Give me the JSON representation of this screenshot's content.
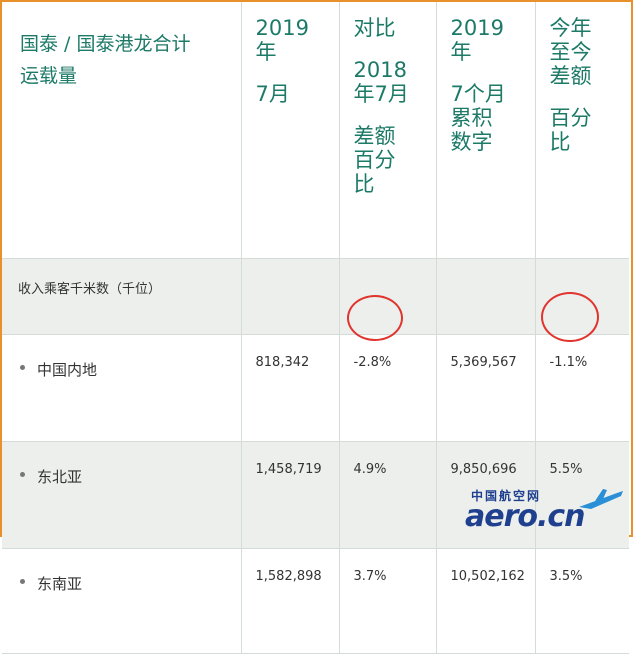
{
  "table": {
    "headers": [
      [
        "国泰 / 国泰港龙合计",
        "运载量"
      ],
      [
        "2019",
        "年",
        "7月"
      ],
      [
        "对比",
        "2018",
        "年7月",
        "差额",
        "百分",
        "比"
      ],
      [
        "2019",
        "年",
        "7个月",
        "累积",
        "数字"
      ],
      [
        "今年",
        "至今",
        "差额",
        "百分",
        "比"
      ]
    ],
    "section_label": "收入乘客千米数（千位）",
    "rows": [
      {
        "name": "中国内地",
        "month": "818,342",
        "mom": "-2.8%",
        "ytd": "5,369,567",
        "ytd_pct": "-1.1%"
      },
      {
        "name": "东北亚",
        "month": "1,458,719",
        "mom": "4.9%",
        "ytd": "9,850,696",
        "ytd_pct": "5.5%"
      },
      {
        "name": "东南亚",
        "month": "1,582,898",
        "mom": "3.7%",
        "ytd": "10,502,162",
        "ytd_pct": "3.5%"
      }
    ]
  },
  "watermark": {
    "cn": "中国航空网",
    "en": "aero.cn"
  },
  "colors": {
    "header_text": "#1c7a67",
    "frame": "#e8912a",
    "circle": "#e0342f",
    "stripe": "#ecefec"
  }
}
